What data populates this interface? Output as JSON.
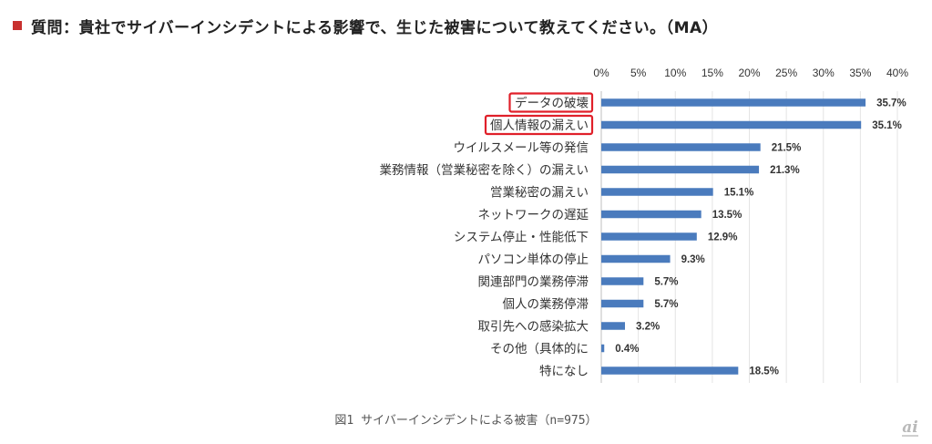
{
  "header": {
    "title": "質問：貴社でサイバーインシデントによる影響で、生じた被害について教えてください。（MA）"
  },
  "chart_data": {
    "type": "bar",
    "orientation": "horizontal",
    "categories": [
      "データの破壊",
      "個人情報の漏えい",
      "ウイルスメール等の発信",
      "業務情報（営業秘密を除く）の漏えい",
      "営業秘密の漏えい",
      "ネットワークの遅延",
      "システム停止・性能低下",
      "パソコン単体の停止",
      "関連部門の業務停滞",
      "個人の業務停滞",
      "取引先への感染拡大",
      "その他（具体的に",
      "特になし"
    ],
    "values": [
      35.7,
      35.1,
      21.5,
      21.3,
      15.1,
      13.5,
      12.9,
      9.3,
      5.7,
      5.7,
      3.2,
      0.4,
      18.5
    ],
    "value_labels": [
      "35.7%",
      "35.1%",
      "21.5%",
      "21.3%",
      "15.1%",
      "13.5%",
      "12.9%",
      "9.3%",
      "5.7%",
      "5.7%",
      "3.2%",
      "0.4%",
      "18.5%"
    ],
    "highlighted": [
      "データの破壊",
      "個人情報の漏えい"
    ],
    "xlim": [
      0,
      40
    ],
    "xticks": [
      "0%",
      "5%",
      "10%",
      "15%",
      "20%",
      "25%",
      "30%",
      "35%",
      "40%"
    ],
    "gridlines": true,
    "bar_color": "#4a7bbd",
    "highlight_color": "#e0202a",
    "title": "",
    "xlabel": "",
    "ylabel": ""
  },
  "caption": "図1 サイバーインシデントによる被害（n=975）",
  "logo": {
    "text": "ai",
    "color": "#b9b9b9"
  }
}
